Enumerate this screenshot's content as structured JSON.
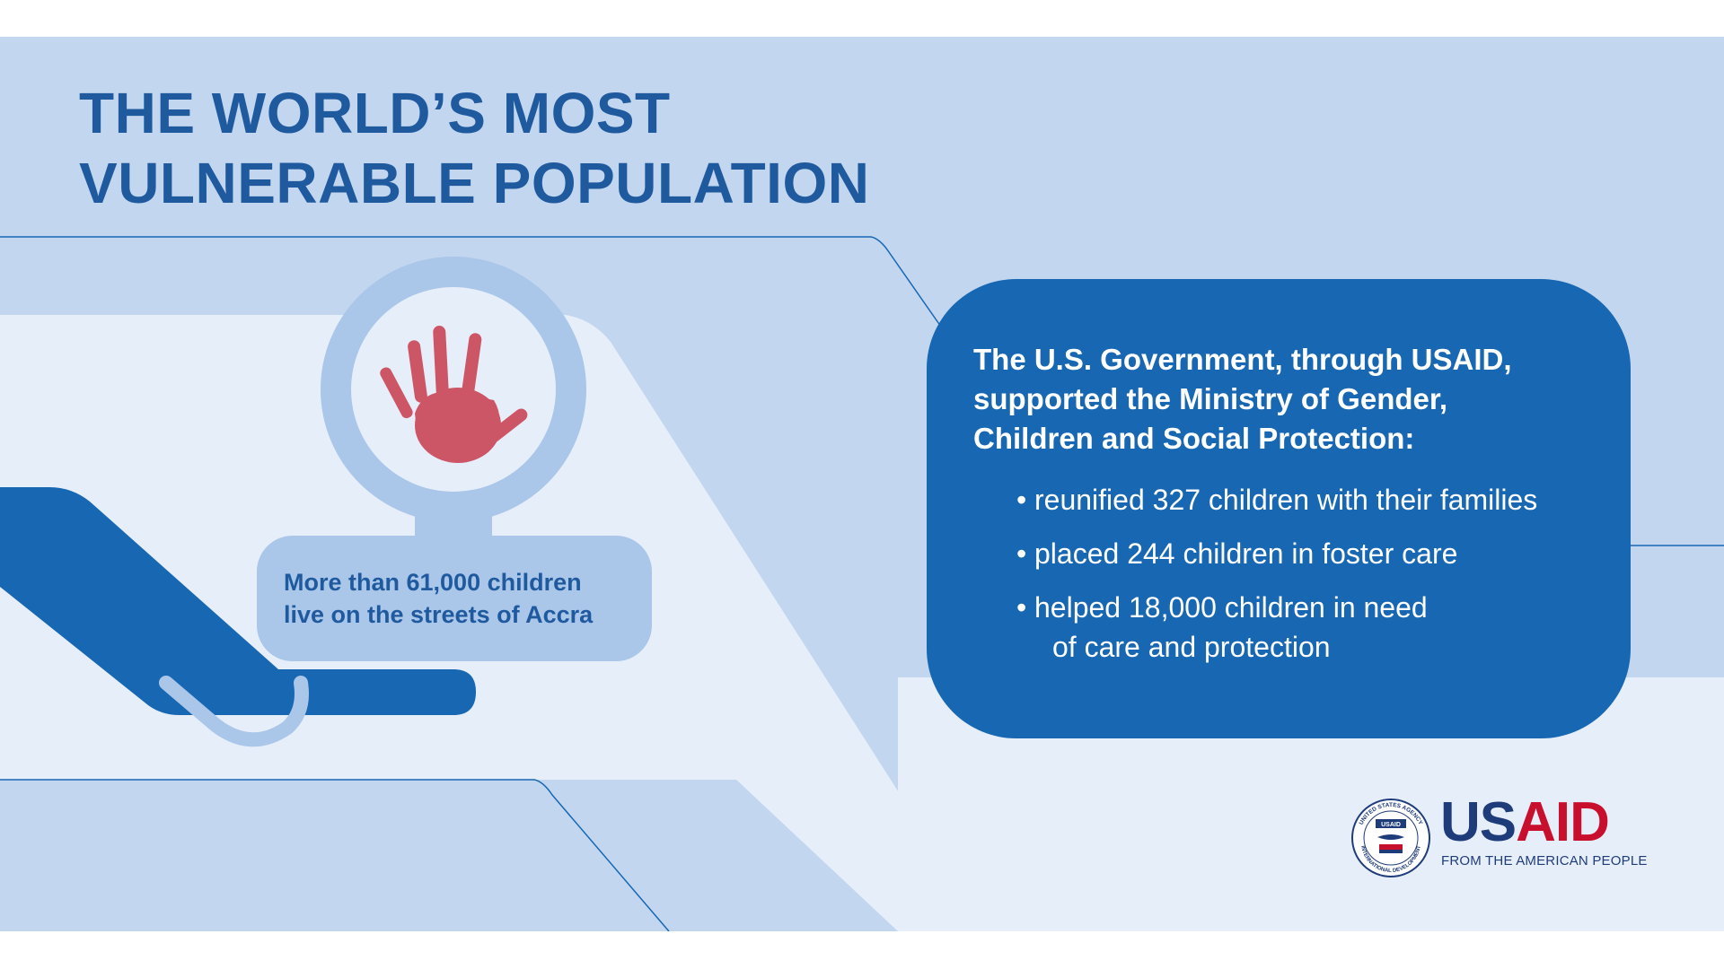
{
  "title": {
    "line1": "THE WORLD’S MOST",
    "line2": "VULNERABLE POPULATION"
  },
  "callout": {
    "line1": "More than 61,000 children",
    "line2": "live on the streets of Accra"
  },
  "info": {
    "heading_line1": "The U.S. Government, through USAID,",
    "heading_line2": "supported the Ministry of Gender,",
    "heading_line3": "Children and Social Protection:",
    "bullets": [
      {
        "text": "reunified 327 children with their families"
      },
      {
        "text": "placed 244 children in foster care"
      },
      {
        "text": "helped 18,000 children in need",
        "text2": "of care and protection"
      }
    ]
  },
  "logo": {
    "us": "US",
    "aid": "AID",
    "tagline": "FROM THE AMERICAN PEOPLE",
    "seal_top_text": "UNITED STATES AGENCY",
    "seal_bottom_text": "INTERNATIONAL DEVELOPMENT",
    "seal_badge": "USAID"
  },
  "colors": {
    "background": "#c2d6ef",
    "band_light": "#e6eef9",
    "primary_blue": "#1767b3",
    "title_blue": "#1f5a9f",
    "circle_blue": "#aac6e9",
    "handprint_red": "#cc5566",
    "usaid_red": "#c8102e",
    "usaid_navy": "#1f3c7a"
  },
  "icons": [
    "handprint-icon",
    "open-hand-icon",
    "usaid-seal-icon"
  ]
}
